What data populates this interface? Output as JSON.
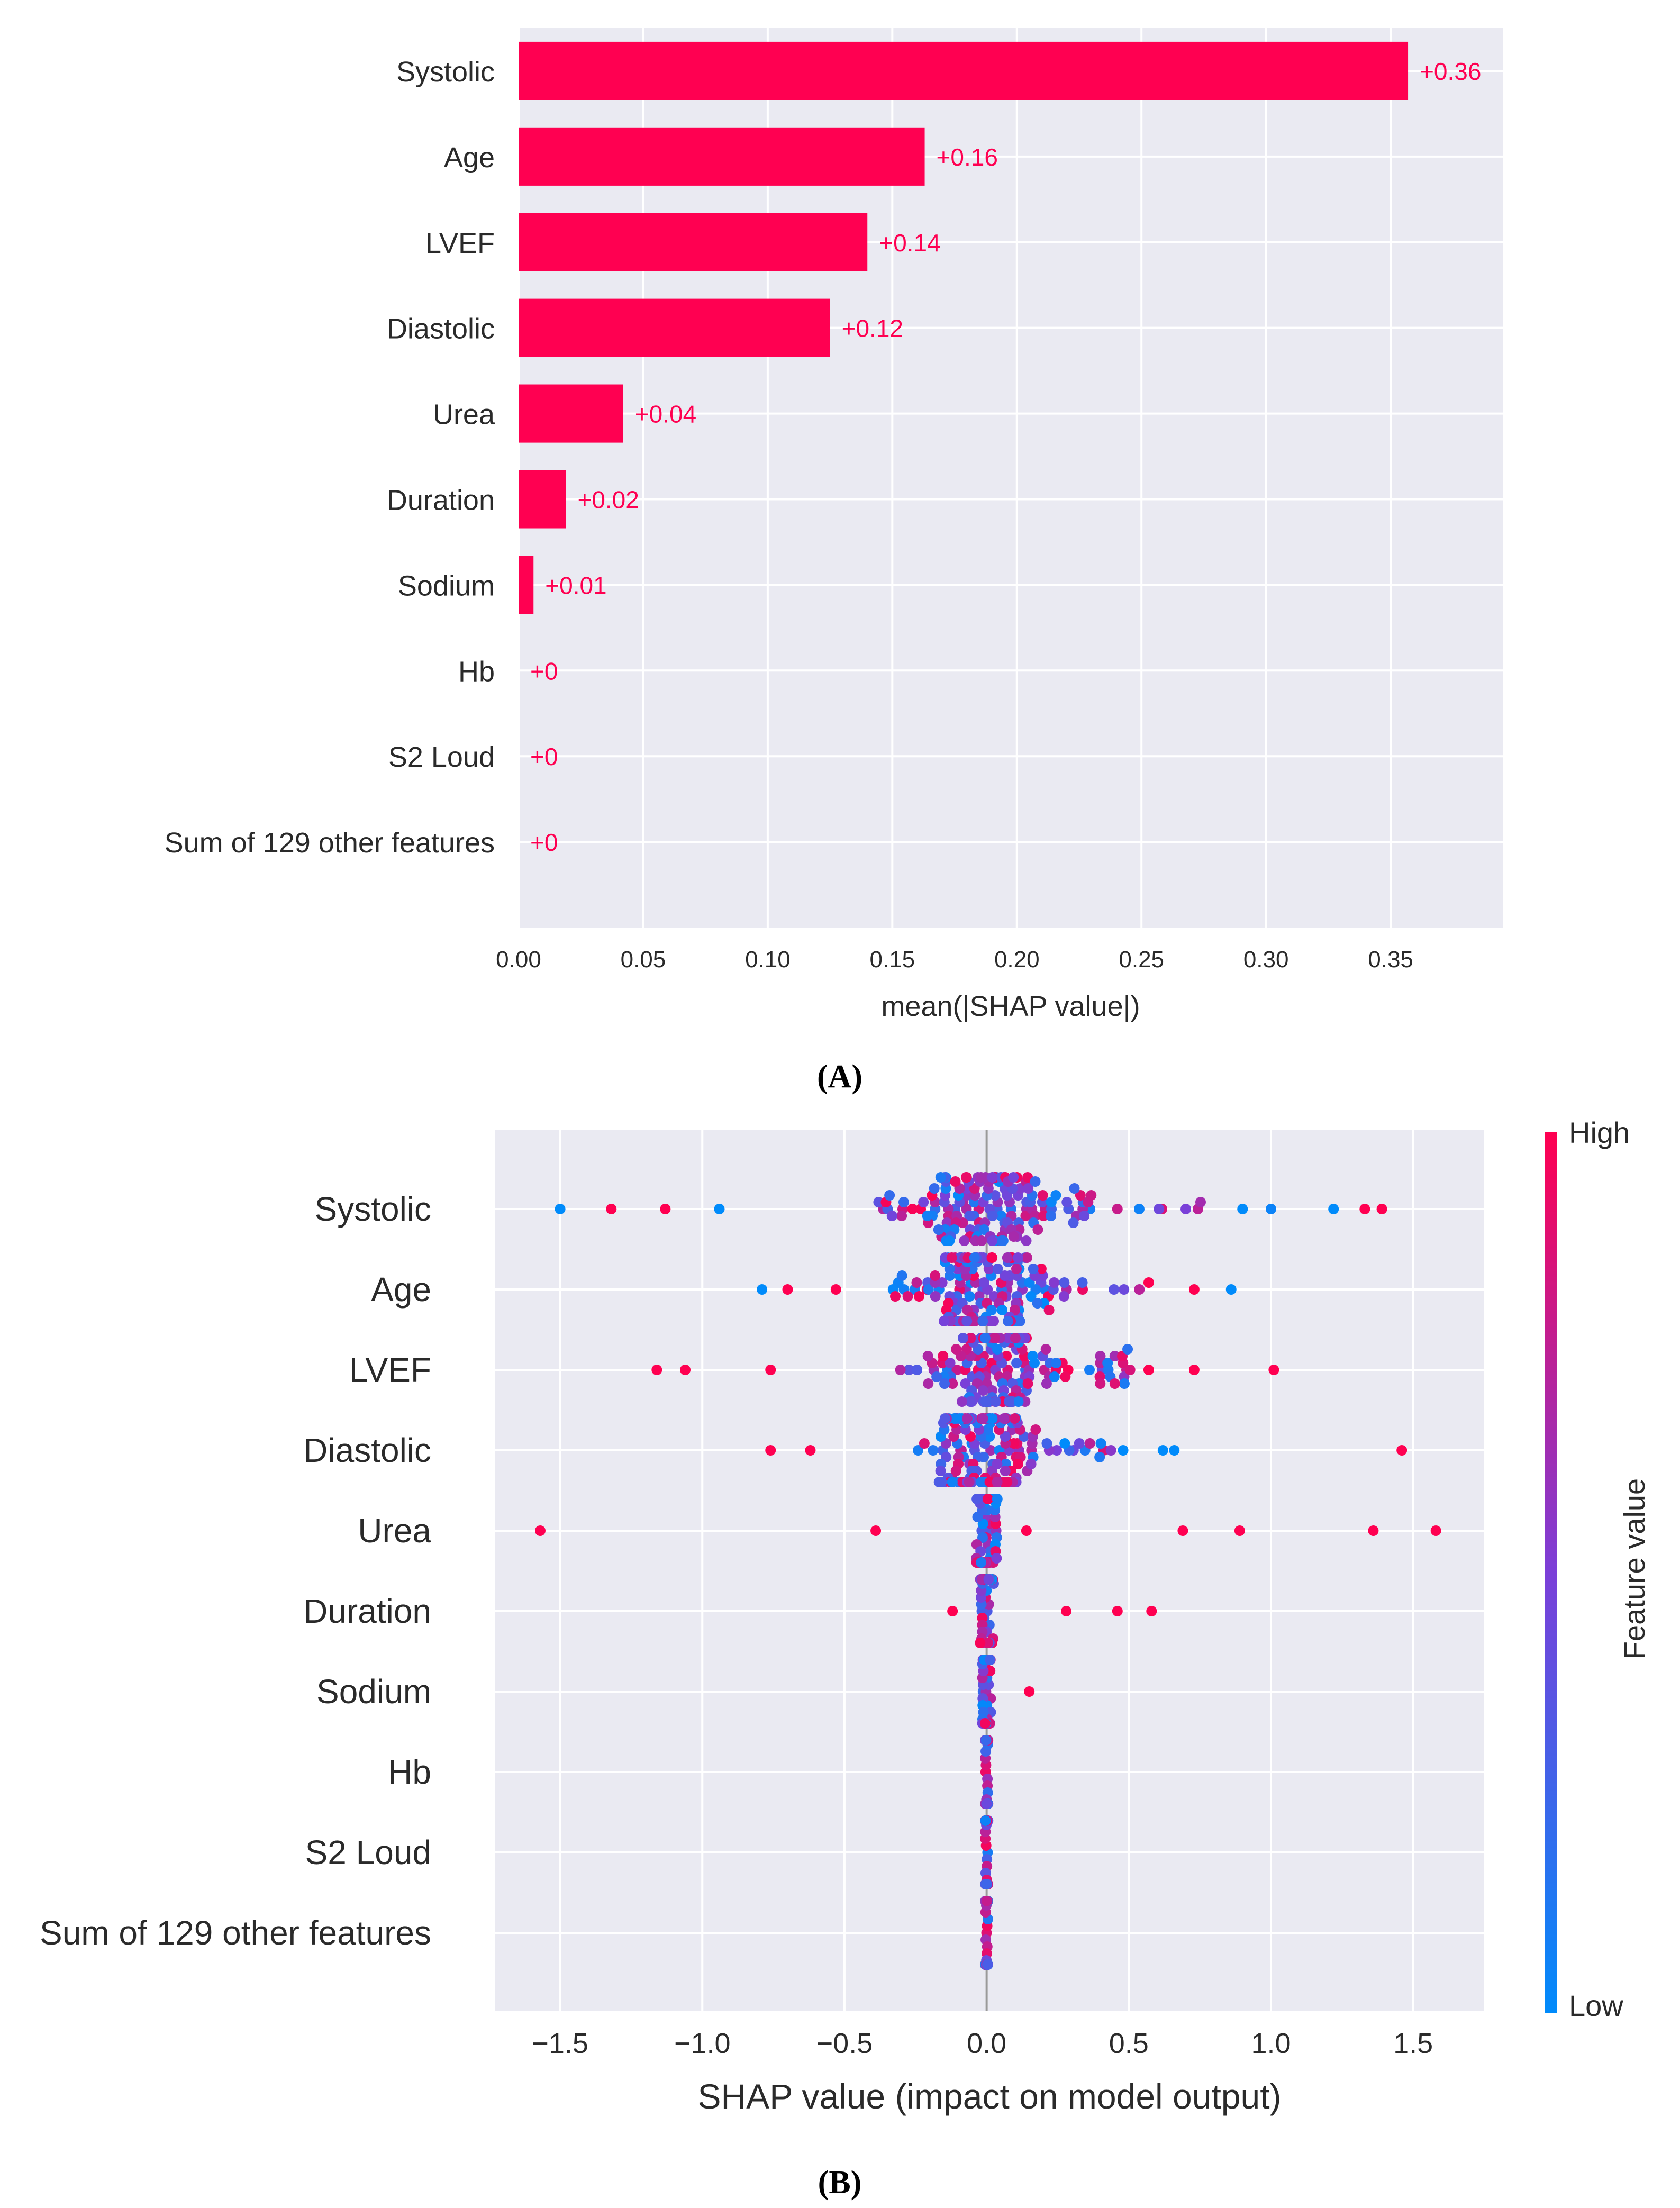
{
  "chart_data": [
    {
      "type": "bar",
      "panel_label": "(A)",
      "categories": [
        "Systolic",
        "Age",
        "LVEF",
        "Diastolic",
        "Urea",
        "Duration",
        "Sodium",
        "Hb",
        "S2 Loud",
        "Sum of 129 other features"
      ],
      "values": [
        0.357,
        0.163,
        0.14,
        0.125,
        0.042,
        0.019,
        0.006,
        0,
        0,
        0
      ],
      "value_labels": [
        "+0.36",
        "+0.16",
        "+0.14",
        "+0.12",
        "+0.04",
        "+0.02",
        "+0.01",
        "+0",
        "+0",
        "+0"
      ],
      "xlabel": "mean(|SHAP value|)",
      "xlim": [
        0,
        0.395
      ],
      "xticks": [
        0.0,
        0.05,
        0.1,
        0.15,
        0.2,
        0.25,
        0.3,
        0.35
      ],
      "xtick_labels": [
        "0.00",
        "0.05",
        "0.10",
        "0.15",
        "0.20",
        "0.25",
        "0.30",
        "0.35"
      ],
      "bar_color": "#ff0051",
      "background_color": "#eaeaf2",
      "grid": true
    },
    {
      "type": "scatter",
      "subtype": "beeswarm",
      "panel_label": "(B)",
      "categories": [
        "Systolic",
        "Age",
        "LVEF",
        "Diastolic",
        "Urea",
        "Duration",
        "Sodium",
        "Hb",
        "S2 Loud",
        "Sum of 129 other features"
      ],
      "xlabel": "SHAP value (impact on model output)",
      "xlim": [
        -1.73,
        1.75
      ],
      "xticks": [
        -1.5,
        -1.0,
        -0.5,
        0.0,
        0.5,
        1.0,
        1.5
      ],
      "xtick_labels": [
        "−1.5",
        "−1.0",
        "−0.5",
        "0.0",
        "0.5",
        "1.0",
        "1.5"
      ],
      "colorbar": {
        "label": "Feature value",
        "high_label": "High",
        "low_label": "Low",
        "high_color": "#ff0051",
        "low_color": "#008bfb",
        "mid_color": "#7b3fd8"
      },
      "background_color": "#eaeaf2",
      "grid": true,
      "spread": [
        0.85,
        0.6,
        0.55,
        0.5,
        0.15,
        0.1,
        0.06,
        0.02,
        0.02,
        0.02
      ],
      "outliers": {
        "Systolic": [
          [
            -1.5,
            0.0
          ],
          [
            -1.32,
            1.0
          ],
          [
            -1.13,
            1.0
          ],
          [
            -0.94,
            0.0
          ],
          [
            1.22,
            0.0
          ],
          [
            1.33,
            1.0
          ],
          [
            1.39,
            1.0
          ],
          [
            1.0,
            0.05
          ],
          [
            0.9,
            0.0
          ]
        ],
        "Age": [
          [
            -0.79,
            0.0
          ],
          [
            -0.7,
            1.0
          ],
          [
            -0.53,
            1.0
          ],
          [
            0.57,
            1.0
          ],
          [
            0.73,
            1.0
          ],
          [
            0.86,
            0.0
          ]
        ],
        "LVEF": [
          [
            -1.16,
            1.0
          ],
          [
            -1.06,
            1.0
          ],
          [
            -0.76,
            1.0
          ],
          [
            0.57,
            1.0
          ],
          [
            0.73,
            1.0
          ],
          [
            1.01,
            1.0
          ]
        ],
        "Diastolic": [
          [
            -0.76,
            1.0
          ],
          [
            -0.62,
            1.0
          ],
          [
            0.48,
            0.0
          ],
          [
            0.62,
            0.0
          ],
          [
            0.66,
            0.0
          ],
          [
            1.46,
            1.0
          ]
        ],
        "Urea": [
          [
            -1.57,
            1.0
          ],
          [
            -0.39,
            1.0
          ],
          [
            0.14,
            1.0
          ],
          [
            0.69,
            1.0
          ],
          [
            0.89,
            1.0
          ],
          [
            1.36,
            1.0
          ],
          [
            1.58,
            1.0
          ]
        ],
        "Duration": [
          [
            -0.12,
            1.0
          ],
          [
            0.28,
            1.0
          ],
          [
            0.46,
            1.0
          ],
          [
            0.58,
            1.0
          ]
        ],
        "Sodium": [
          [
            0.15,
            1.0
          ]
        ]
      }
    }
  ]
}
